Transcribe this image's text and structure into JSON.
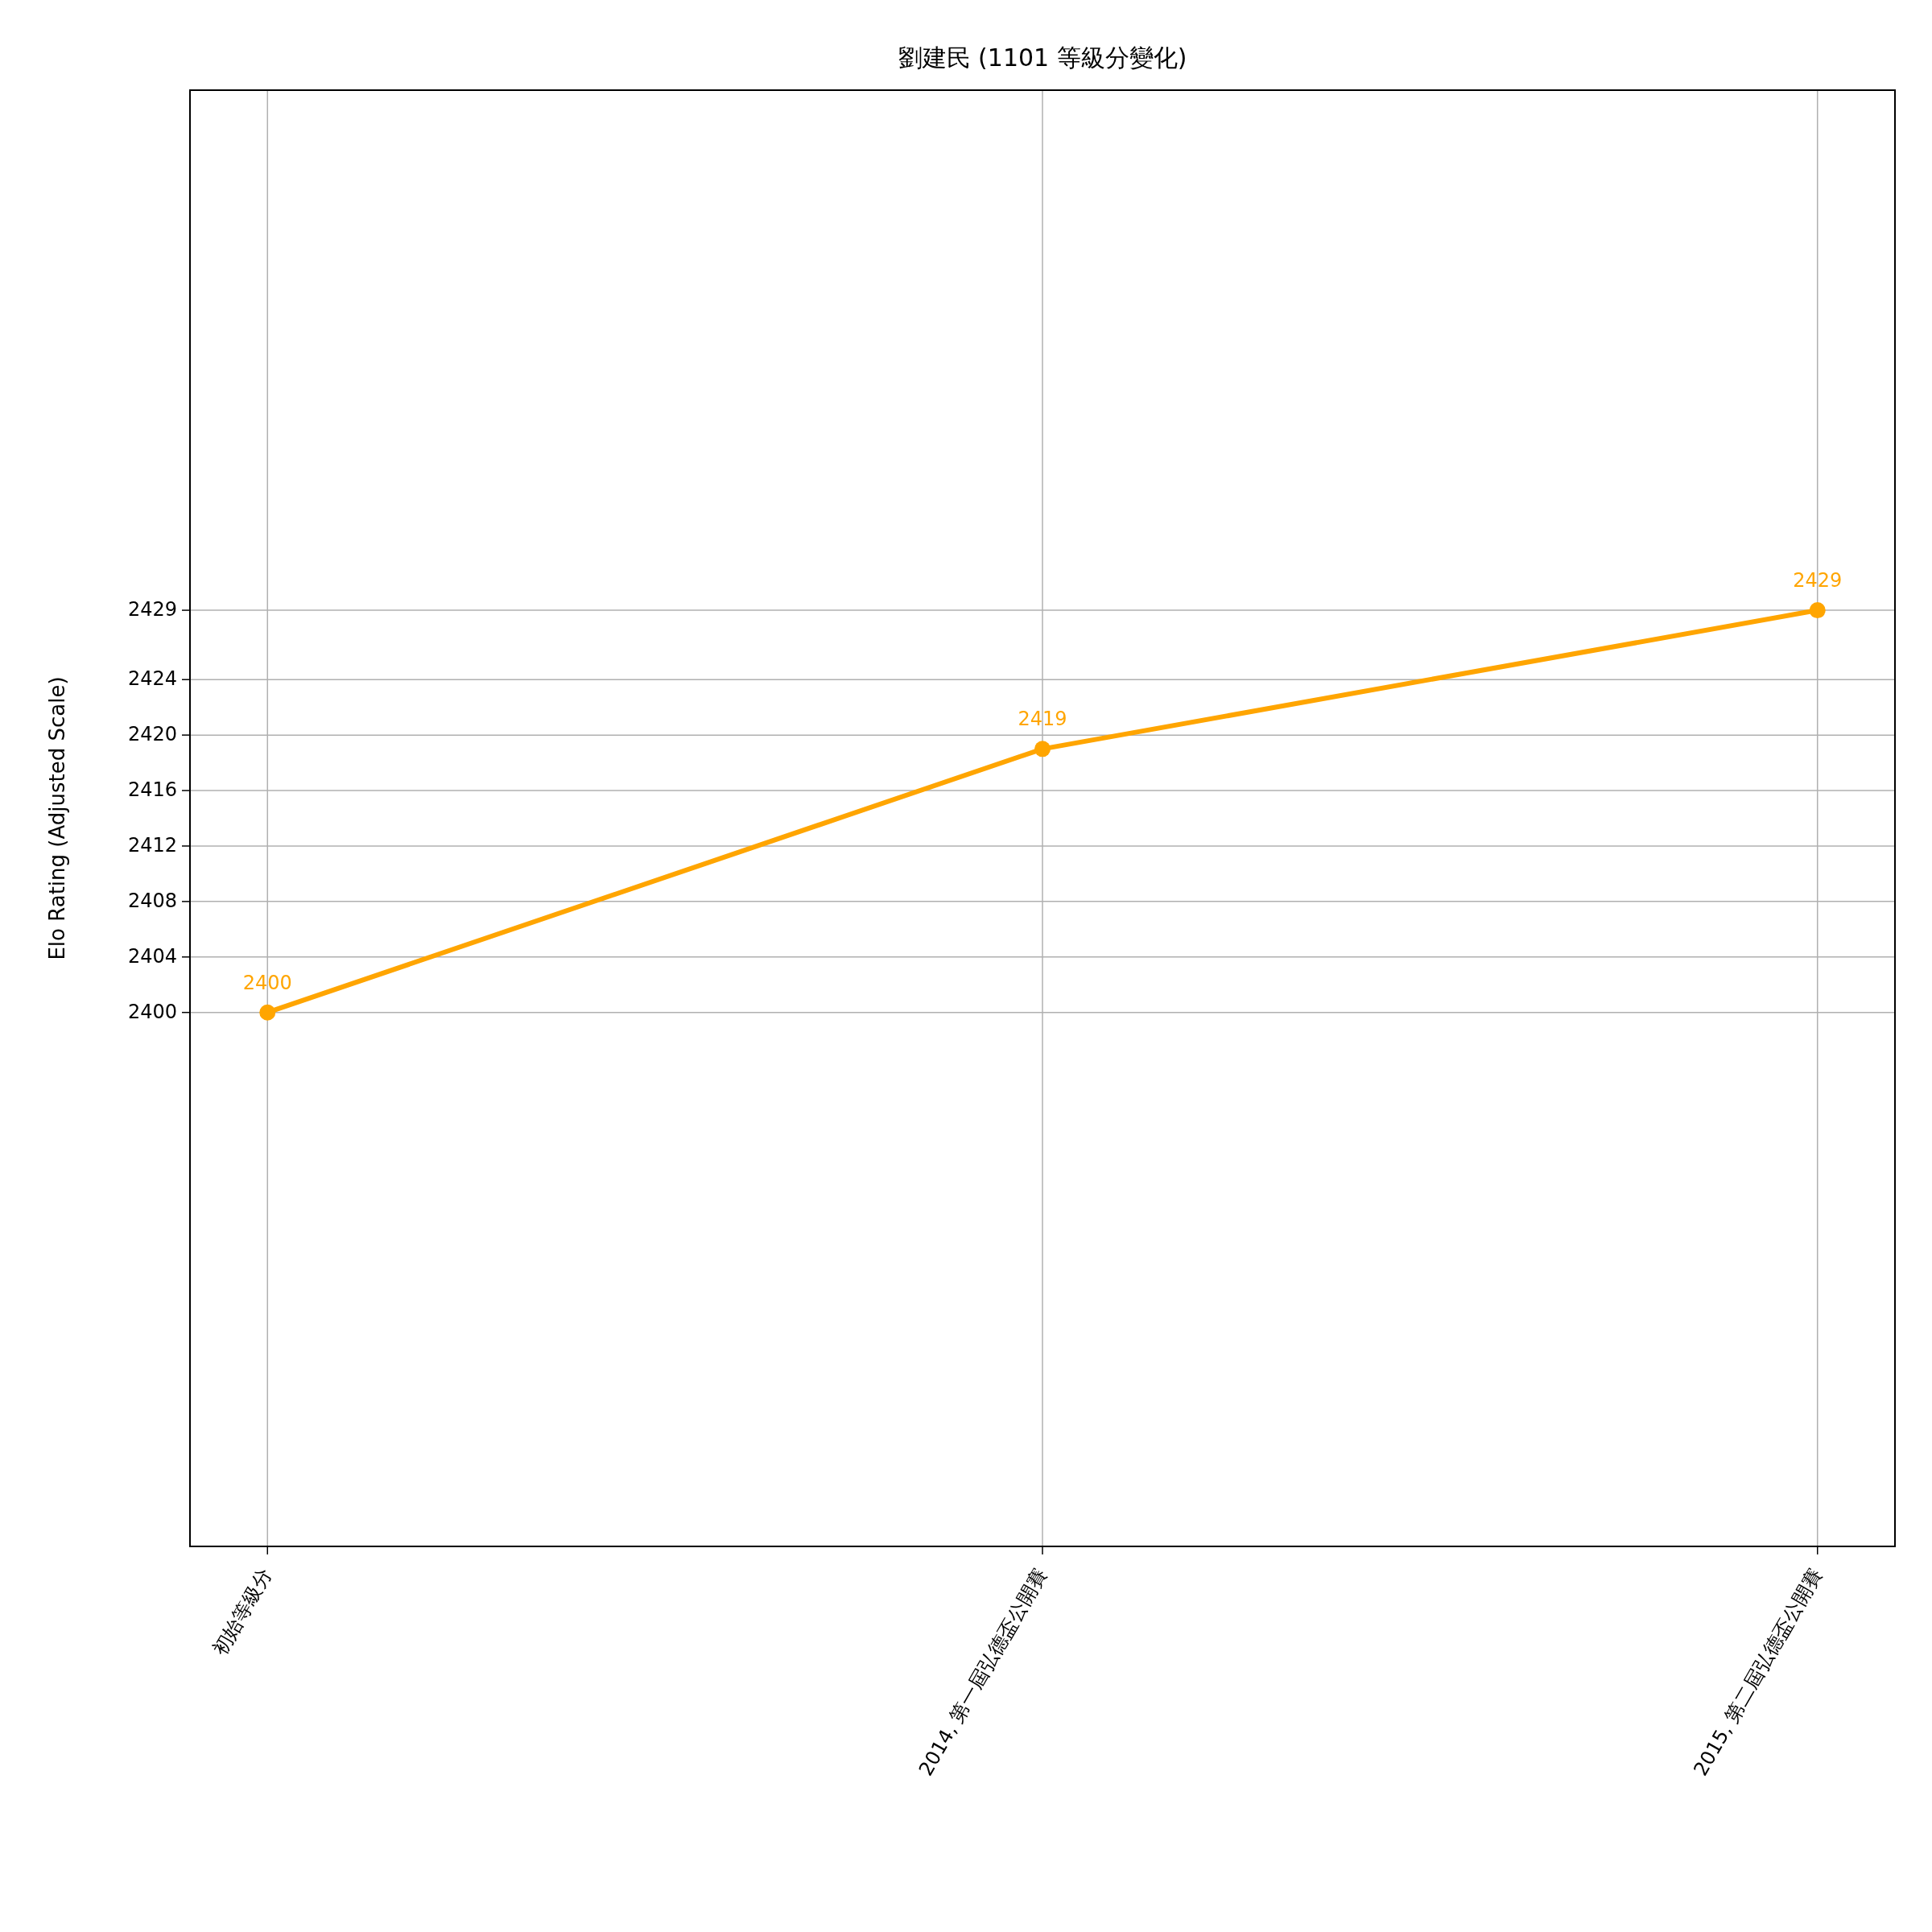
{
  "chart_data": {
    "type": "line",
    "title": "劉建民 (1101 等級分變化)",
    "ylabel": "Elo Rating (Adjusted Scale)",
    "categories": [
      "初始等級分",
      "2014, 第一屆弘德盃公開賽",
      "2015, 第二屆弘德盃公開賽"
    ],
    "series": [
      {
        "color": "#ffa500",
        "values": [
          2400,
          2419,
          2429
        ]
      }
    ],
    "ylim": [
      2361.5,
      2466.5
    ],
    "yticks": [
      2400,
      2404,
      2408,
      2412,
      2416,
      2420,
      2424,
      2429
    ],
    "grid": true,
    "marker": "circle",
    "line_style": "solid",
    "data_labels": true
  }
}
